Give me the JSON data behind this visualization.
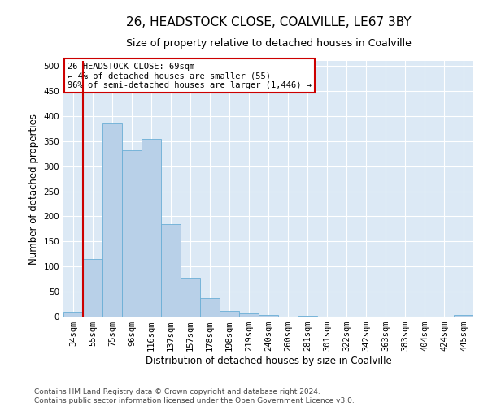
{
  "title": "26, HEADSTOCK CLOSE, COALVILLE, LE67 3BY",
  "subtitle": "Size of property relative to detached houses in Coalville",
  "xlabel": "Distribution of detached houses by size in Coalville",
  "ylabel": "Number of detached properties",
  "categories": [
    "34sqm",
    "55sqm",
    "75sqm",
    "96sqm",
    "116sqm",
    "137sqm",
    "157sqm",
    "178sqm",
    "198sqm",
    "219sqm",
    "240sqm",
    "260sqm",
    "281sqm",
    "301sqm",
    "322sqm",
    "342sqm",
    "363sqm",
    "383sqm",
    "404sqm",
    "424sqm",
    "445sqm"
  ],
  "values": [
    10,
    115,
    385,
    332,
    354,
    185,
    77,
    38,
    12,
    6,
    4,
    0,
    1,
    0,
    0,
    0,
    0,
    0,
    0,
    0,
    3
  ],
  "bar_color": "#b8d0e8",
  "bar_edge_color": "#6aaed6",
  "vline_x_index": 1,
  "vline_color": "#cc0000",
  "annotation_line1": "26 HEADSTOCK CLOSE: 69sqm",
  "annotation_line2": "← 4% of detached houses are smaller (55)",
  "annotation_line3": "96% of semi-detached houses are larger (1,446) →",
  "ylim": [
    0,
    510
  ],
  "yticks": [
    0,
    50,
    100,
    150,
    200,
    250,
    300,
    350,
    400,
    450,
    500
  ],
  "footer": "Contains HM Land Registry data © Crown copyright and database right 2024.\nContains public sector information licensed under the Open Government Licence v3.0.",
  "bg_color": "#ffffff",
  "plot_bg_color": "#dce9f5",
  "grid_color": "#ffffff",
  "title_fontsize": 11,
  "subtitle_fontsize": 9,
  "axis_label_fontsize": 8.5,
  "tick_fontsize": 7.5,
  "footer_fontsize": 6.5
}
